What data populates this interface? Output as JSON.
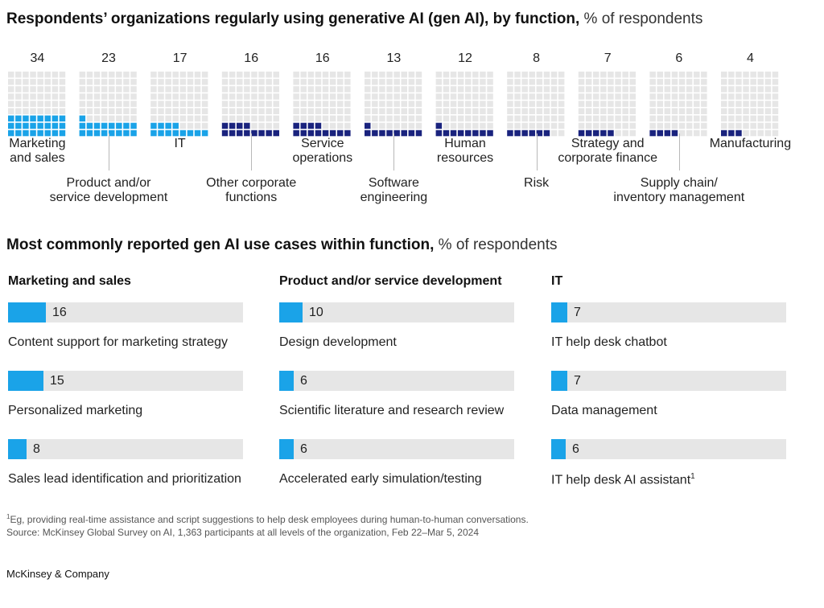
{
  "chart1": {
    "title_bold": "Respondents’ organizations regularly using generative AI (gen AI), by function,",
    "title_unit": "% of respondents"
  },
  "chart2": {
    "title_bold": "Most commonly reported gen AI use cases within function,",
    "title_unit": "% of respondents"
  },
  "colors": {
    "highlight": "#1aa3e8",
    "dark": "#1a237e",
    "empty": "#e6e6e6",
    "bar_track": "#e6e6e6",
    "bar_fill": "#1aa3e8"
  },
  "chart_data": [
    {
      "type": "waffle",
      "title": "Respondents’ organizations regularly using generative AI (gen AI), by function, % of respondents",
      "grid": "8 columns x 9 rows per function",
      "categories": [
        "Marketing and sales",
        "Product and/or service development",
        "IT",
        "Other corporate functions",
        "Service operations",
        "Software engineering",
        "Human resources",
        "Risk",
        "Strategy and corporate finance",
        "Supply chain/ inventory management",
        "Manufacturing"
      ],
      "labels": [
        [
          "Marketing",
          "and sales"
        ],
        [
          "Product and/or",
          "service development"
        ],
        [
          "IT"
        ],
        [
          "Other corporate",
          "functions"
        ],
        [
          "Service",
          "operations"
        ],
        [
          "Software",
          "engineering"
        ],
        [
          "Human",
          "resources"
        ],
        [
          "Risk"
        ],
        [
          "Strategy and",
          "corporate finance"
        ],
        [
          "Supply chain/",
          "inventory management"
        ],
        [
          "Manufacturing"
        ]
      ],
      "values": [
        34,
        23,
        17,
        16,
        16,
        13,
        12,
        8,
        7,
        6,
        4
      ],
      "highlighted": [
        true,
        true,
        true,
        false,
        false,
        false,
        false,
        false,
        false,
        false,
        false
      ]
    },
    {
      "type": "bar",
      "title": "Most commonly reported gen AI use cases within function, % of respondents",
      "panels": [
        {
          "name": "Marketing and sales",
          "items": [
            {
              "label": "Content support for marketing strategy",
              "value": 16
            },
            {
              "label": "Personalized marketing",
              "value": 15
            },
            {
              "label": "Sales lead identification and prioritization",
              "value": 8
            }
          ]
        },
        {
          "name": "Product and/or service development",
          "items": [
            {
              "label": "Design development",
              "value": 10
            },
            {
              "label": "Scientific literature and research review",
              "value": 6
            },
            {
              "label": "Accelerated early simulation/testing",
              "value": 6
            }
          ]
        },
        {
          "name": "IT",
          "items": [
            {
              "label": "IT help desk chatbot",
              "value": 7
            },
            {
              "label": "Data management",
              "value": 7
            },
            {
              "label": "IT help desk AI assistant",
              "value": 6,
              "footnote": "1"
            }
          ]
        }
      ],
      "xlim": [
        0,
        100
      ]
    }
  ],
  "footnotes": {
    "note1_mark": "1",
    "note1": "Eg, providing real-time assistance and script suggestions to help desk employees during human-to-human conversations.",
    "source": "Source: McKinsey Global Survey on AI, 1,363 participants at all levels of the organization, Feb 22–Mar 5, 2024"
  },
  "brand": "McKinsey & Company"
}
